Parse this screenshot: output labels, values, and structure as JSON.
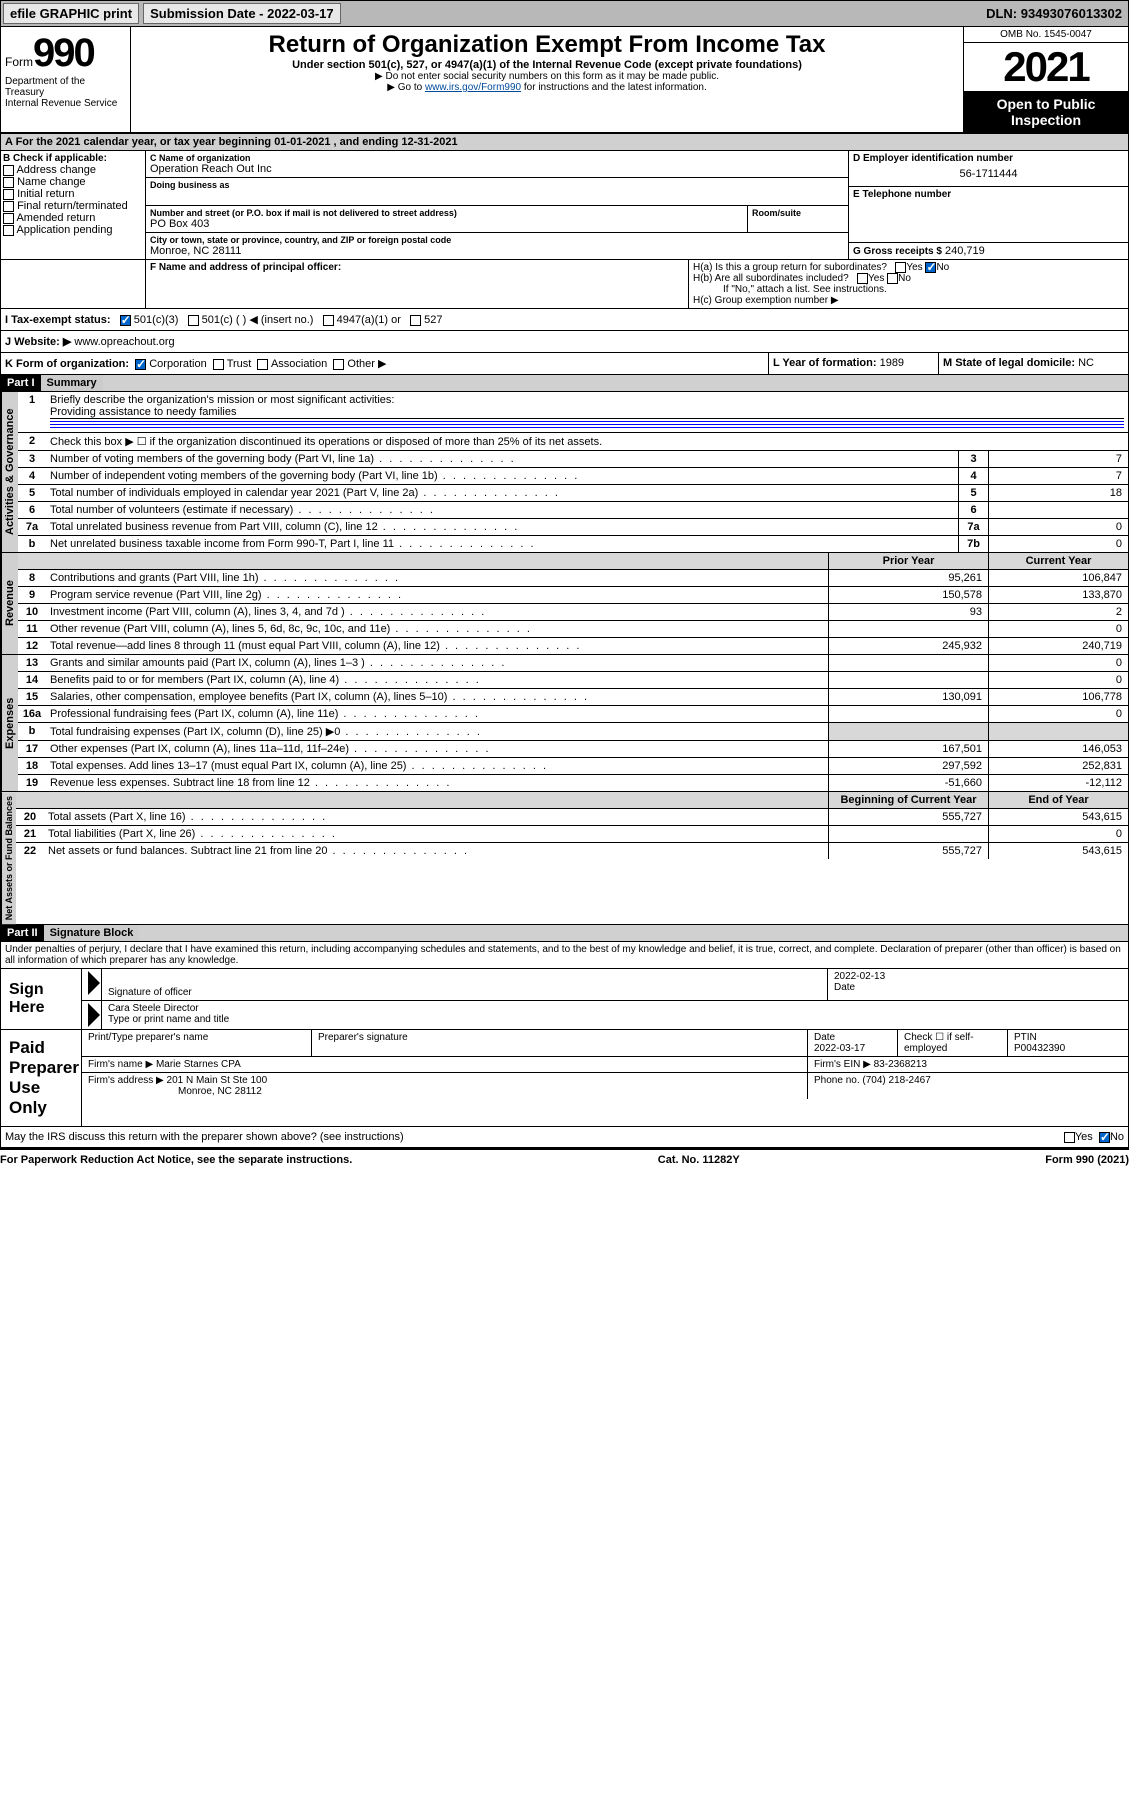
{
  "topbar": {
    "efile": "efile GRAPHIC print",
    "submission_label": "Submission Date",
    "submission_date": "2022-03-17",
    "dln_label": "DLN:",
    "dln": "93493076013302"
  },
  "header": {
    "form_prefix": "Form",
    "form_number": "990",
    "dept": "Department of the Treasury\nInternal Revenue Service",
    "title": "Return of Organization Exempt From Income Tax",
    "subtitle": "Under section 501(c), 527, or 4947(a)(1) of the Internal Revenue Code (except private foundations)",
    "instr1": "▶ Do not enter social security numbers on this form as it may be made public.",
    "instr2_prefix": "▶ Go to ",
    "instr2_link": "www.irs.gov/Form990",
    "instr2_suffix": " for instructions and the latest information.",
    "omb": "OMB No. 1545-0047",
    "year": "2021",
    "open": "Open to Public Inspection"
  },
  "sectionA": {
    "line": "A For the 2021 calendar year, or tax year beginning 01-01-2021  , and ending 12-31-2021"
  },
  "sectionB": {
    "label": "B Check if applicable:",
    "opts": [
      "Address change",
      "Name change",
      "Initial return",
      "Final return/terminated",
      "Amended return",
      "Application pending"
    ]
  },
  "sectionC": {
    "name_label": "C Name of organization",
    "name": "Operation Reach Out Inc",
    "dba_label": "Doing business as",
    "dba": "",
    "addr_label": "Number and street (or P.O. box if mail is not delivered to street address)",
    "room_label": "Room/suite",
    "addr": "PO Box 403",
    "city_label": "City or town, state or province, country, and ZIP or foreign postal code",
    "city": "Monroe, NC  28111"
  },
  "sectionD": {
    "label": "D Employer identification number",
    "value": "56-1711444"
  },
  "sectionE": {
    "label": "E Telephone number",
    "value": ""
  },
  "sectionG": {
    "label": "G Gross receipts $",
    "value": "240,719"
  },
  "sectionF": {
    "label": "F Name and address of principal officer:",
    "value": ""
  },
  "sectionH": {
    "a": "H(a)  Is this a group return for subordinates?",
    "b": "H(b)  Are all subordinates included?",
    "note": "If \"No,\" attach a list. See instructions.",
    "c": "H(c)  Group exemption number ▶"
  },
  "sectionI": {
    "label": "I  Tax-exempt status:",
    "opts": [
      "501(c)(3)",
      "501(c) (  ) ◀ (insert no.)",
      "4947(a)(1) or",
      "527"
    ]
  },
  "sectionJ": {
    "label": "J  Website: ▶",
    "value": "www.opreachout.org"
  },
  "sectionK": {
    "label": "K Form of organization:",
    "opts": [
      "Corporation",
      "Trust",
      "Association",
      "Other ▶"
    ]
  },
  "sectionL": {
    "label": "L Year of formation:",
    "value": "1989"
  },
  "sectionM": {
    "label": "M State of legal domicile:",
    "value": "NC"
  },
  "part1": {
    "hdr": "Part I",
    "title": "Summary",
    "q1": "Briefly describe the organization's mission or most significant activities:",
    "mission": "Providing assistance to needy families",
    "q2": "Check this box ▶ ☐ if the organization discontinued its operations or disposed of more than 25% of its net assets.",
    "lines_gov": [
      {
        "n": "3",
        "desc": "Number of voting members of the governing body (Part VI, line 1a)",
        "box": "3",
        "val": "7"
      },
      {
        "n": "4",
        "desc": "Number of independent voting members of the governing body (Part VI, line 1b)",
        "box": "4",
        "val": "7"
      },
      {
        "n": "5",
        "desc": "Total number of individuals employed in calendar year 2021 (Part V, line 2a)",
        "box": "5",
        "val": "18"
      },
      {
        "n": "6",
        "desc": "Total number of volunteers (estimate if necessary)",
        "box": "6",
        "val": ""
      },
      {
        "n": "7a",
        "desc": "Total unrelated business revenue from Part VIII, column (C), line 12",
        "box": "7a",
        "val": "0"
      },
      {
        "n": "b",
        "desc": "Net unrelated business taxable income from Form 990-T, Part I, line 11",
        "box": "7b",
        "val": "0"
      }
    ],
    "col_py": "Prior Year",
    "col_cy": "Current Year",
    "lines_rev": [
      {
        "n": "8",
        "desc": "Contributions and grants (Part VIII, line 1h)",
        "py": "95,261",
        "cy": "106,847"
      },
      {
        "n": "9",
        "desc": "Program service revenue (Part VIII, line 2g)",
        "py": "150,578",
        "cy": "133,870"
      },
      {
        "n": "10",
        "desc": "Investment income (Part VIII, column (A), lines 3, 4, and 7d )",
        "py": "93",
        "cy": "2"
      },
      {
        "n": "11",
        "desc": "Other revenue (Part VIII, column (A), lines 5, 6d, 8c, 9c, 10c, and 11e)",
        "py": "",
        "cy": "0"
      },
      {
        "n": "12",
        "desc": "Total revenue—add lines 8 through 11 (must equal Part VIII, column (A), line 12)",
        "py": "245,932",
        "cy": "240,719"
      }
    ],
    "lines_exp": [
      {
        "n": "13",
        "desc": "Grants and similar amounts paid (Part IX, column (A), lines 1–3 )",
        "py": "",
        "cy": "0"
      },
      {
        "n": "14",
        "desc": "Benefits paid to or for members (Part IX, column (A), line 4)",
        "py": "",
        "cy": "0"
      },
      {
        "n": "15",
        "desc": "Salaries, other compensation, employee benefits (Part IX, column (A), lines 5–10)",
        "py": "130,091",
        "cy": "106,778"
      },
      {
        "n": "16a",
        "desc": "Professional fundraising fees (Part IX, column (A), line 11e)",
        "py": "",
        "cy": "0"
      },
      {
        "n": "b",
        "desc": "Total fundraising expenses (Part IX, column (D), line 25) ▶0",
        "py": "grey",
        "cy": "grey"
      },
      {
        "n": "17",
        "desc": "Other expenses (Part IX, column (A), lines 11a–11d, 11f–24e)",
        "py": "167,501",
        "cy": "146,053"
      },
      {
        "n": "18",
        "desc": "Total expenses. Add lines 13–17 (must equal Part IX, column (A), line 25)",
        "py": "297,592",
        "cy": "252,831"
      },
      {
        "n": "19",
        "desc": "Revenue less expenses. Subtract line 18 from line 12",
        "py": "-51,660",
        "cy": "-12,112"
      }
    ],
    "col_bcy": "Beginning of Current Year",
    "col_eoy": "End of Year",
    "lines_net": [
      {
        "n": "20",
        "desc": "Total assets (Part X, line 16)",
        "py": "555,727",
        "cy": "543,615"
      },
      {
        "n": "21",
        "desc": "Total liabilities (Part X, line 26)",
        "py": "",
        "cy": "0"
      },
      {
        "n": "22",
        "desc": "Net assets or fund balances. Subtract line 21 from line 20",
        "py": "555,727",
        "cy": "543,615"
      }
    ],
    "vtabs": {
      "gov": "Activities & Governance",
      "rev": "Revenue",
      "exp": "Expenses",
      "net": "Net Assets or Fund Balances"
    }
  },
  "part2": {
    "hdr": "Part II",
    "title": "Signature Block",
    "penalty": "Under penalties of perjury, I declare that I have examined this return, including accompanying schedules and statements, and to the best of my knowledge and belief, it is true, correct, and complete. Declaration of preparer (other than officer) is based on all information of which preparer has any knowledge.",
    "sign_here": "Sign Here",
    "sig_officer": "Signature of officer",
    "sig_date": "Date",
    "sig_date_val": "2022-02-13",
    "sig_name": "Cara Steele  Director",
    "sig_typed": "Type or print name and title",
    "paid_prep": "Paid Preparer Use Only",
    "prep_name_label": "Print/Type preparer's name",
    "prep_sig_label": "Preparer's signature",
    "prep_date_label": "Date",
    "prep_date": "2022-03-17",
    "prep_check": "Check ☐ if self-employed",
    "ptin_label": "PTIN",
    "ptin": "P00432390",
    "firm_name_label": "Firm's name    ▶",
    "firm_name": "Marie Starnes CPA",
    "firm_ein_label": "Firm's EIN ▶",
    "firm_ein": "83-2368213",
    "firm_addr_label": "Firm's address ▶",
    "firm_addr": "201 N Main St Ste 100",
    "firm_city": "Monroe, NC  28112",
    "firm_phone_label": "Phone no.",
    "firm_phone": "(704) 218-2467",
    "discuss": "May the IRS discuss this return with the preparer shown above? (see instructions)"
  },
  "footer": {
    "left": "For Paperwork Reduction Act Notice, see the separate instructions.",
    "center": "Cat. No. 11282Y",
    "right": "Form 990 (2021)"
  },
  "yesno": {
    "yes": "Yes",
    "no": "No"
  }
}
